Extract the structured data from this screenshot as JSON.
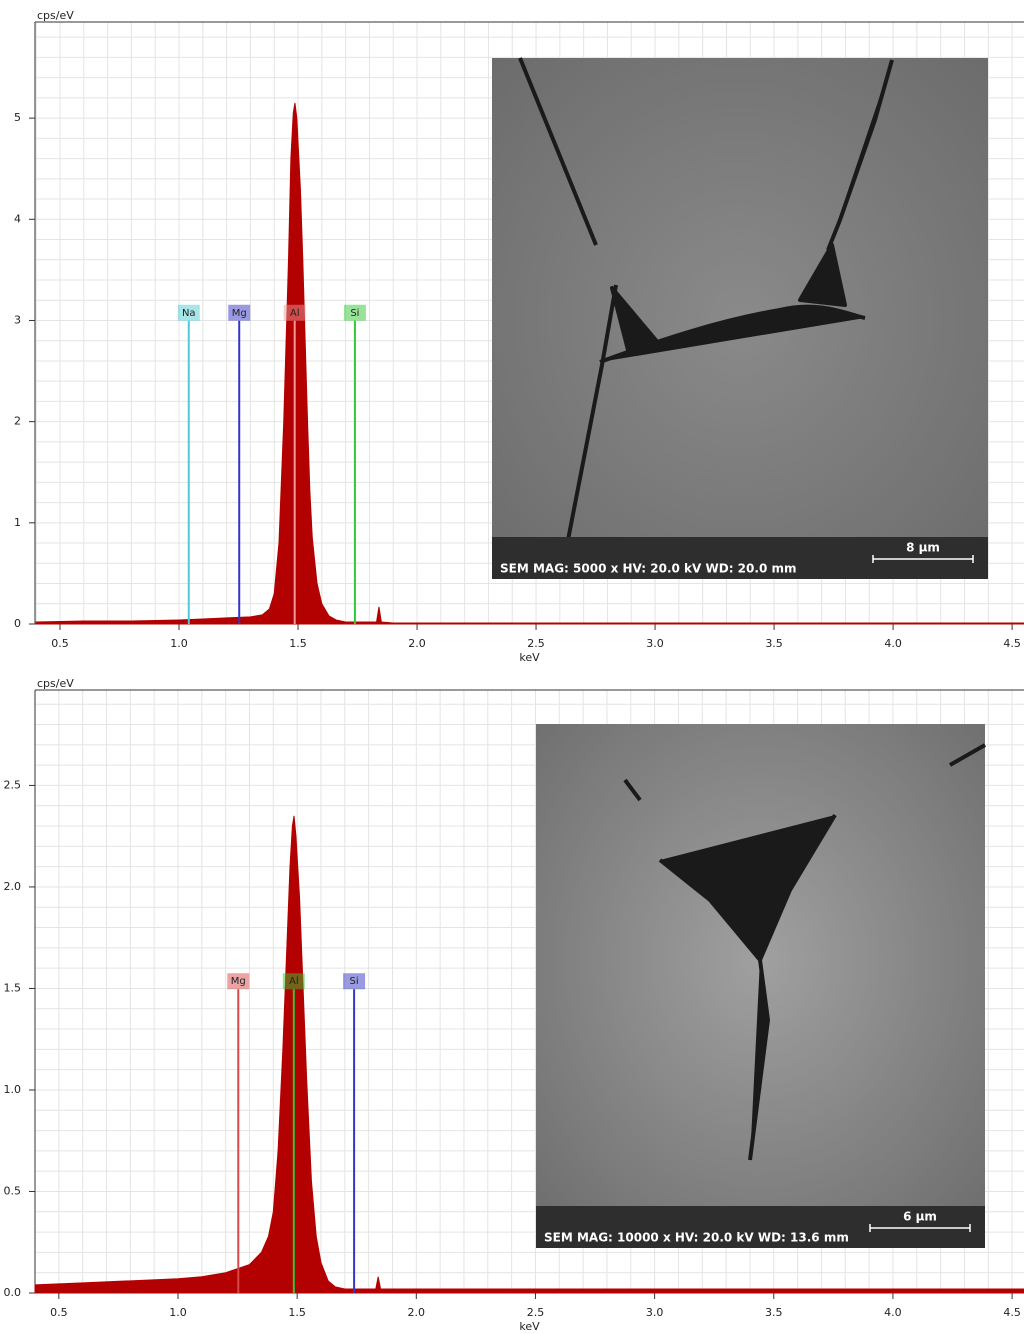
{
  "chart_data": [
    {
      "type": "spectrum",
      "y_label": "cps/eV",
      "x_label": "keV",
      "color": "#b30000",
      "x": [
        0.4,
        0.6,
        0.8,
        1.0,
        1.1,
        1.2,
        1.3,
        1.35,
        1.38,
        1.4,
        1.42,
        1.44,
        1.46,
        1.47,
        1.48,
        1.487,
        1.495,
        1.51,
        1.52,
        1.53,
        1.54,
        1.55,
        1.56,
        1.58,
        1.6,
        1.63,
        1.66,
        1.7,
        1.8,
        1.83,
        1.84,
        1.85,
        1.9,
        2.2,
        2.6,
        3.0,
        3.5,
        4.0,
        4.55
      ],
      "values": [
        0.02,
        0.03,
        0.03,
        0.04,
        0.05,
        0.06,
        0.07,
        0.09,
        0.15,
        0.3,
        0.8,
        2.0,
        3.6,
        4.6,
        5.05,
        5.15,
        5.0,
        4.3,
        3.6,
        2.8,
        2.0,
        1.3,
        0.85,
        0.4,
        0.2,
        0.08,
        0.04,
        0.02,
        0.02,
        0.02,
        0.17,
        0.02,
        0.01,
        0.01,
        0.01,
        0.01,
        0.01,
        0.01,
        0.01
      ],
      "xlim": [
        0.395,
        4.55
      ],
      "ylim": [
        0,
        5.95
      ],
      "xticks": [
        0.5,
        {
          "value": 1,
          "label": "1.0"
        },
        1.5,
        {
          "value": 2,
          "label": "2.0"
        },
        2.5,
        {
          "value": 3,
          "label": "3.0"
        },
        3.5,
        {
          "value": 4,
          "label": "4.0"
        },
        4.5
      ],
      "yticks": [
        0,
        1,
        2,
        3,
        4,
        5
      ],
      "grid": true,
      "markers": [
        {
          "label": "Na",
          "x": 1.041,
          "color": "#4fcbd3"
        },
        {
          "label": "Mg",
          "x": 1.253,
          "color": "#3535c8"
        },
        {
          "label": "Al",
          "x": 1.486,
          "color": "#f09a9a"
        },
        {
          "label": "Si",
          "x": 1.739,
          "color": "#33c833"
        }
      ],
      "inset": {
        "caption": "SEM  MAG: 5000 x  HV: 20.0 kV  WD: 20.0 mm",
        "scale": "8 µm"
      }
    },
    {
      "type": "spectrum",
      "y_label": "cps/eV",
      "x_label": "keV",
      "color": "#b30000",
      "x": [
        0.4,
        0.6,
        0.8,
        1.0,
        1.1,
        1.2,
        1.3,
        1.35,
        1.38,
        1.4,
        1.42,
        1.44,
        1.46,
        1.47,
        1.48,
        1.487,
        1.495,
        1.51,
        1.52,
        1.53,
        1.54,
        1.55,
        1.56,
        1.58,
        1.6,
        1.63,
        1.66,
        1.7,
        1.8,
        1.83,
        1.84,
        1.85,
        1.9,
        2.2,
        2.6,
        3.0,
        3.5,
        4.0,
        4.55
      ],
      "values": [
        0.04,
        0.05,
        0.06,
        0.07,
        0.08,
        0.1,
        0.14,
        0.2,
        0.28,
        0.4,
        0.7,
        1.2,
        1.8,
        2.1,
        2.3,
        2.35,
        2.25,
        1.95,
        1.65,
        1.35,
        1.05,
        0.8,
        0.55,
        0.28,
        0.15,
        0.06,
        0.03,
        0.02,
        0.02,
        0.02,
        0.08,
        0.02,
        0.02,
        0.02,
        0.02,
        0.02,
        0.02,
        0.02,
        0.02
      ],
      "xlim": [
        0.4,
        4.55
      ],
      "ylim": [
        0,
        2.97
      ],
      "xticks": [
        0.5,
        {
          "value": 1,
          "label": "1.0"
        },
        1.5,
        {
          "value": 2,
          "label": "2.0"
        },
        2.5,
        {
          "value": 3,
          "label": "3.0"
        },
        3.5,
        {
          "value": 4,
          "label": "4.0"
        },
        4.5
      ],
      "yticks": [
        {
          "value": 0,
          "label": "0.0"
        },
        0.5,
        {
          "value": 1,
          "label": "1.0"
        },
        1.5,
        {
          "value": 2,
          "label": "2.0"
        },
        2.5
      ],
      "grid": true,
      "markers": [
        {
          "label": "Mg",
          "x": 1.253,
          "color": "#d84848"
        },
        {
          "label": "Al",
          "x": 1.486,
          "color": "#33c833"
        },
        {
          "label": "Si",
          "x": 1.739,
          "color": "#3535c8"
        }
      ],
      "inset": {
        "caption": "SEM  MAG: 10000 x  HV: 20.0 kV  WD: 13.6 mm",
        "scale": "6 µm"
      }
    }
  ]
}
